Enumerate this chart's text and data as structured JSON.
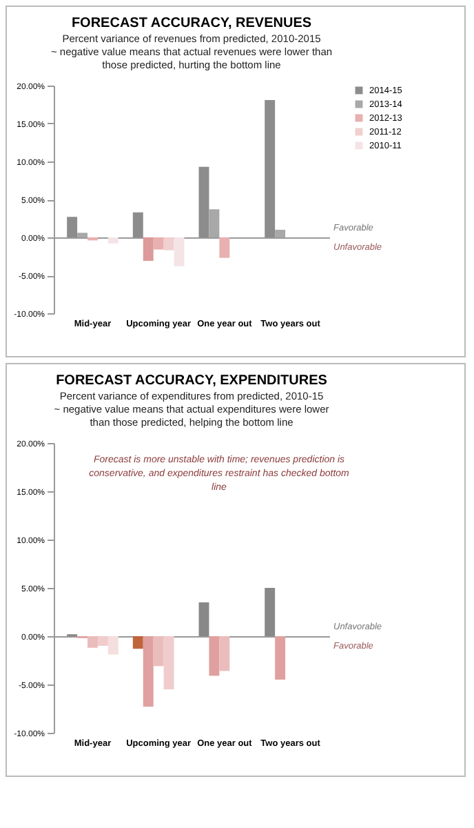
{
  "chart_data": [
    {
      "type": "bar",
      "title": "FORECAST ACCURACY, REVENUES",
      "subtitle": "Percent variance of revenues from predicted, 2010-2015",
      "annotations": [
        "~ negative value means that actual revenues were lower than those predicted, hurting the bottom line",
        "Favorable",
        "Unfavorable"
      ],
      "categories": [
        "Mid-year",
        "Upcoming year",
        "One year out",
        "Two years out"
      ],
      "series": [
        {
          "name": "2014-15",
          "color": "#8c8c8c",
          "values": [
            2.7,
            3.3,
            9.3,
            18.1
          ]
        },
        {
          "name": "2013-14",
          "color": "#a8a8a8",
          "colors": [
            "#a8a8a8",
            "#dc9a9a",
            "#a8a8a8",
            "#a8a8a8"
          ],
          "values": [
            0.6,
            -3.1,
            3.7,
            1.0
          ]
        },
        {
          "name": "2012-13",
          "color": "#e8b0b0",
          "values": [
            -0.4,
            -1.6,
            -2.7,
            null
          ]
        },
        {
          "name": "2011-12",
          "color": "#f0d0d0",
          "values": [
            null,
            -1.7,
            null,
            null
          ]
        },
        {
          "name": "2010-11",
          "color": "#f5e4e6",
          "values": [
            -0.8,
            -3.8,
            null,
            null
          ]
        }
      ],
      "ylim": [
        -10,
        20
      ],
      "yticks": [
        {
          "value": -10,
          "label": "-10.00%"
        },
        {
          "value": -5,
          "label": "-5.00%"
        },
        {
          "value": 0,
          "label": "0.00%"
        },
        {
          "value": 5,
          "label": "5.00%"
        },
        {
          "value": 10,
          "label": "10.00%"
        },
        {
          "value": 15,
          "label": "15.00%"
        },
        {
          "value": 20,
          "label": "20.00%"
        }
      ],
      "legend": "right"
    },
    {
      "type": "bar",
      "title": "FORECAST ACCURACY, EXPENDITURES",
      "subtitle": "Percent variance of expenditures from predicted, 2010-15",
      "annotations": [
        "~ negative value means that actual expenditures were lower than those predicted, helping the bottom line",
        "Forecast is more unstable with time; revenues prediction is conservative, and expenditures restraint has checked bottom line",
        "Unfavorable",
        "Favorable"
      ],
      "categories": [
        "Mid-year",
        "Upcoming year",
        "One year out",
        "Two years out"
      ],
      "series": [
        {
          "color": "#888888",
          "colors": [
            "#888888",
            "#c0643c",
            "#888888",
            "#888888"
          ],
          "values": [
            0.2,
            -1.3,
            3.5,
            5.0
          ]
        },
        {
          "color": "#e0a0a0",
          "values": [
            -0.2,
            -7.3,
            -4.1,
            -4.5
          ]
        },
        {
          "color": "#ebbcbc",
          "values": [
            -1.2,
            -3.1,
            -3.6,
            null
          ]
        },
        {
          "color": "#f0cccc",
          "values": [
            -1.0,
            -5.5,
            null,
            null
          ]
        },
        {
          "color": "#f5dede",
          "values": [
            -1.9,
            null,
            null,
            null
          ]
        }
      ],
      "ylim": [
        -10,
        20
      ],
      "yticks": [
        {
          "value": -10,
          "label": "-10.00%"
        },
        {
          "value": -5,
          "label": "-5.00%"
        },
        {
          "value": 0,
          "label": "0.00%"
        },
        {
          "value": 5,
          "label": "5.00%"
        },
        {
          "value": 10,
          "label": "10.00%"
        },
        {
          "value": 15,
          "label": "15.00%"
        },
        {
          "value": 20,
          "label": "20.00%"
        }
      ]
    }
  ]
}
